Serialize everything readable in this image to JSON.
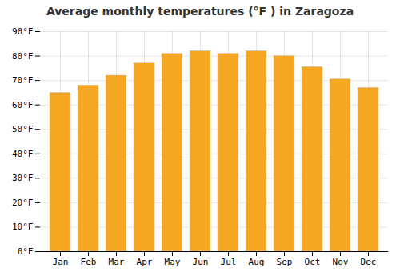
{
  "chart_data": {
    "type": "bar",
    "title": "Average monthly temperatures (°F ) in Zaragoza",
    "categories": [
      "Jan",
      "Feb",
      "Mar",
      "Apr",
      "May",
      "Jun",
      "Jul",
      "Aug",
      "Sep",
      "Oct",
      "Nov",
      "Dec"
    ],
    "values": [
      65,
      68,
      72,
      77,
      81,
      82,
      81,
      82,
      80,
      75.5,
      70.5,
      67
    ],
    "color": "#F5A623",
    "ylim": [
      0,
      90
    ],
    "yticks": [
      {
        "value": 0,
        "label": "0°F"
      },
      {
        "value": 10,
        "label": "10°F"
      },
      {
        "value": 20,
        "label": "20°F"
      },
      {
        "value": 30,
        "label": "30°F"
      },
      {
        "value": 40,
        "label": "40°F"
      },
      {
        "value": 50,
        "label": "50°F"
      },
      {
        "value": 60,
        "label": "60°F"
      },
      {
        "value": 70,
        "label": "70°F"
      },
      {
        "value": 80,
        "label": "80°F"
      },
      {
        "value": 90,
        "label": "90°F"
      }
    ],
    "grid": true
  }
}
